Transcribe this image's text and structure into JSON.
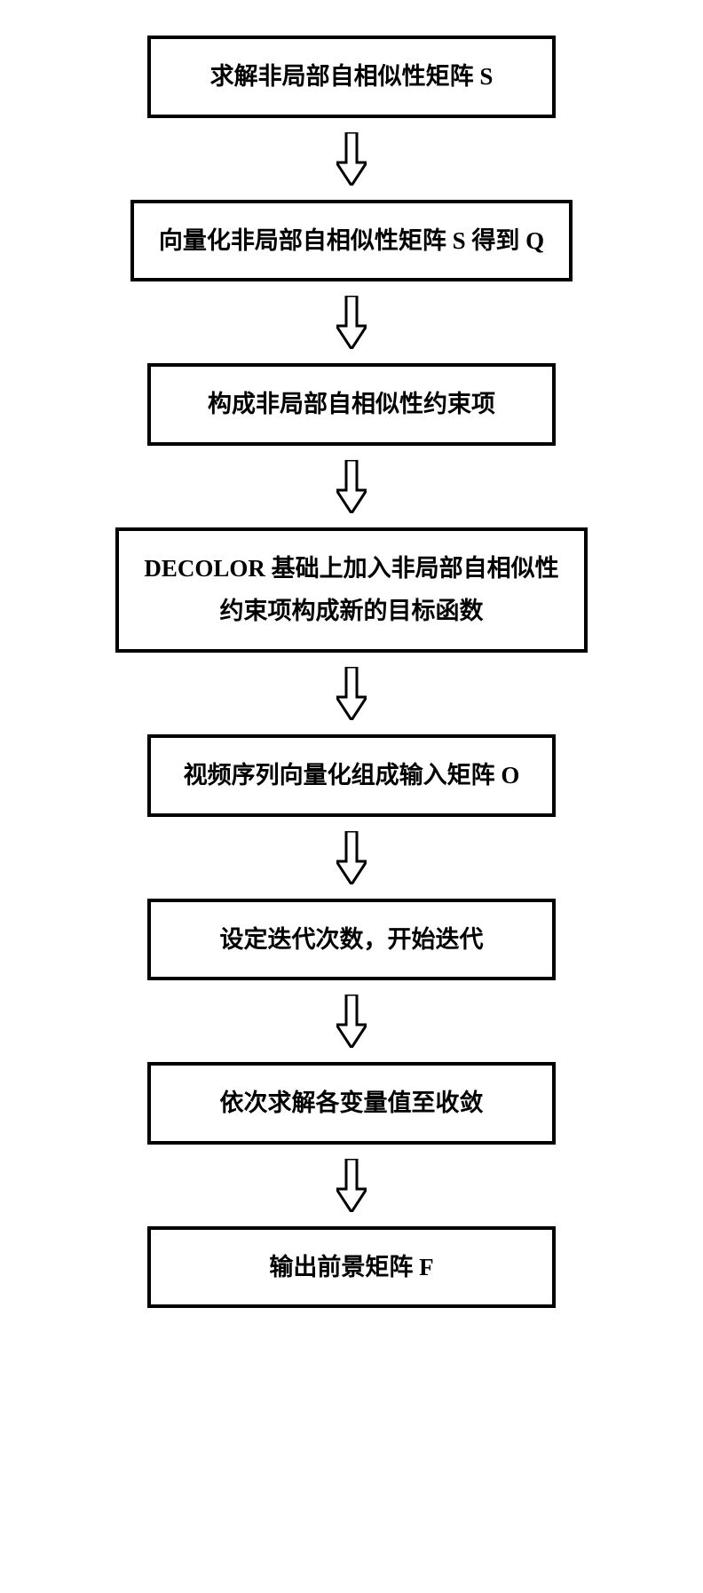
{
  "flowchart": {
    "type": "flowchart",
    "direction": "vertical",
    "background_color": "#ffffff",
    "node_border_color": "#000000",
    "node_border_width": 4,
    "node_fill": "#ffffff",
    "text_color": "#000000",
    "font_family": "SimSun",
    "font_weight": "bold",
    "node_fontsize": 27,
    "node_min_width": 460,
    "arrow_style": "hollow-block",
    "arrow_stroke": "#000000",
    "arrow_fill": "#ffffff",
    "arrow_stroke_width": 3,
    "nodes": [
      {
        "id": "n1",
        "label_html": "求解非局部自相似性矩阵 <b>S</b>"
      },
      {
        "id": "n2",
        "label_html": "向量化非局部自相似性矩阵 <b>S</b> 得到 <b>Q</b>"
      },
      {
        "id": "n3",
        "label_html": "构成非局部自相似性约束项"
      },
      {
        "id": "n4",
        "label_html": "DECOLOR 基础上加入非局部自相似性<br>约束项构成新的目标函数"
      },
      {
        "id": "n5",
        "label_html": "视频序列向量化组成输入矩阵 <b>O</b>"
      },
      {
        "id": "n6",
        "label_html": "设定迭代次数，开始迭代"
      },
      {
        "id": "n7",
        "label_html": "依次求解各变量值至收敛"
      },
      {
        "id": "n8",
        "label_html": "输出前景矩阵 <b>F</b>"
      }
    ],
    "edges": [
      {
        "from": "n1",
        "to": "n2"
      },
      {
        "from": "n2",
        "to": "n3"
      },
      {
        "from": "n3",
        "to": "n4"
      },
      {
        "from": "n4",
        "to": "n5"
      },
      {
        "from": "n5",
        "to": "n6"
      },
      {
        "from": "n6",
        "to": "n7"
      },
      {
        "from": "n7",
        "to": "n8"
      }
    ]
  }
}
